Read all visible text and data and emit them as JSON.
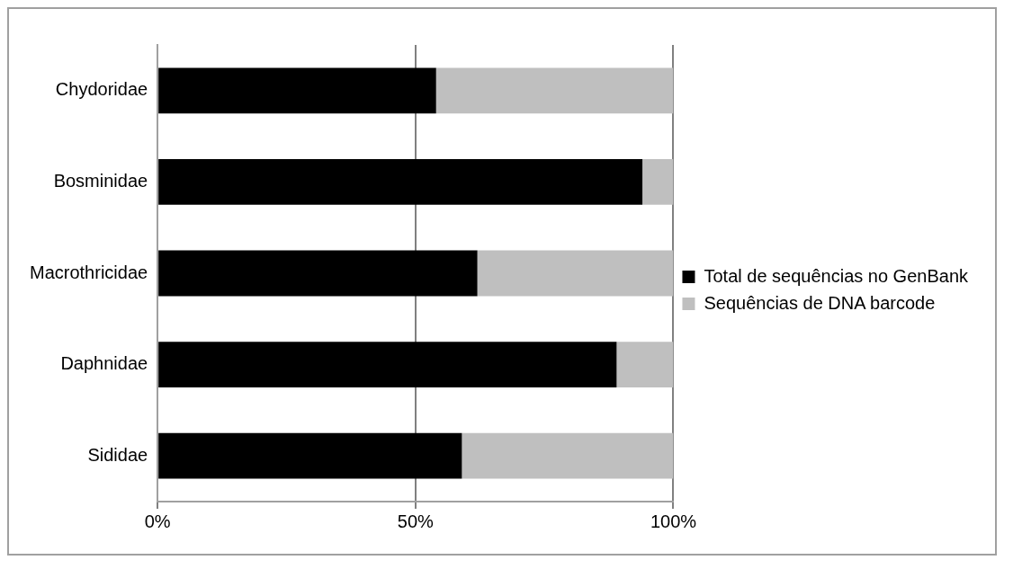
{
  "chart_data": {
    "type": "bar",
    "orientation": "horizontal",
    "stacked": true,
    "categories": [
      "Chydoridae",
      "Bosminidae",
      "Macrothricidae",
      "Daphnidae",
      "Sididae"
    ],
    "series": [
      {
        "name": "Total de sequências no GenBank",
        "color": "#000000",
        "values": [
          54,
          94,
          62,
          89,
          59
        ]
      },
      {
        "name": "Sequências de DNA barcode",
        "color": "#bfbfbf",
        "values": [
          46,
          6,
          38,
          11,
          41
        ]
      }
    ],
    "xlim": [
      0,
      100
    ],
    "xticks": [
      {
        "value": 0,
        "label": "0%"
      },
      {
        "value": 50,
        "label": "50%"
      },
      {
        "value": 100,
        "label": "100%"
      }
    ],
    "grid": "x",
    "legend": "right"
  }
}
